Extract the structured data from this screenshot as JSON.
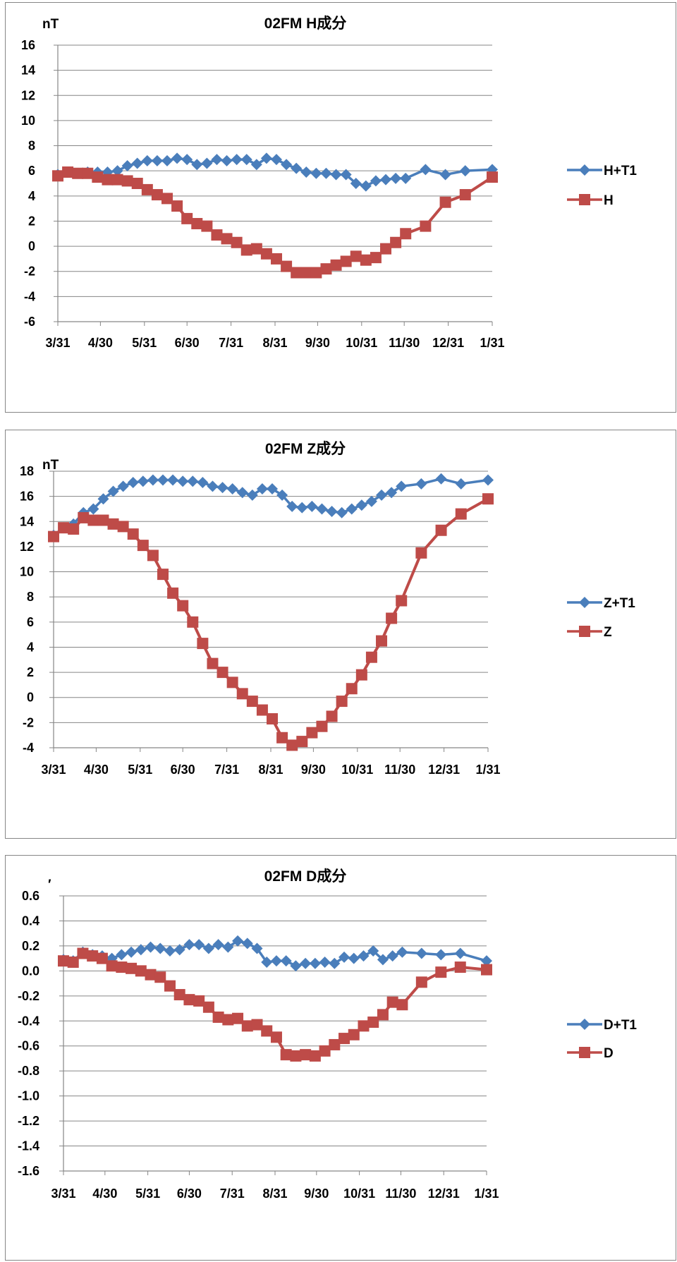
{
  "chart_data": [
    {
      "type": "line",
      "title": "02FM H成分",
      "ylabel": "nT",
      "xlabel": "",
      "ylim": [
        -6,
        16
      ],
      "yticks": [
        "16",
        "14",
        "12",
        "10",
        "8",
        "6",
        "4",
        "2",
        "0",
        "-2",
        "-4",
        "-6"
      ],
      "xticks": [
        "3/31",
        "4/30",
        "5/31",
        "6/30",
        "7/31",
        "8/31",
        "9/30",
        "10/31",
        "11/30",
        "12/31",
        "1/31"
      ],
      "xlim": [
        "3/31",
        "1/31"
      ],
      "grid": "horizontal",
      "legend_position": "right",
      "series": [
        {
          "name": "H+T1",
          "color": "#4a7ebb",
          "marker": "diamond",
          "x": [
            "3/31",
            "4/7",
            "4/14",
            "4/21",
            "4/28",
            "5/5",
            "5/12",
            "5/19",
            "5/26",
            "6/2",
            "6/9",
            "6/16",
            "6/23",
            "6/30",
            "7/7",
            "7/14",
            "7/21",
            "7/28",
            "8/4",
            "8/11",
            "8/18",
            "8/25",
            "9/1",
            "9/8",
            "9/15",
            "9/22",
            "9/29",
            "10/6",
            "10/13",
            "10/20",
            "10/27",
            "11/3",
            "11/10",
            "11/17",
            "11/24",
            "12/1",
            "12/15",
            "12/29",
            "1/12",
            "1/31"
          ],
          "values": [
            5.7,
            5.9,
            5.8,
            5.9,
            5.9,
            5.9,
            6.0,
            6.4,
            6.6,
            6.8,
            6.8,
            6.8,
            7.0,
            6.9,
            6.5,
            6.6,
            6.9,
            6.8,
            6.9,
            6.9,
            6.5,
            7.0,
            6.9,
            6.5,
            6.2,
            5.9,
            5.8,
            5.8,
            5.7,
            5.7,
            5.0,
            4.8,
            5.2,
            5.3,
            5.4,
            5.4,
            6.1,
            5.7,
            6.0,
            6.1
          ]
        },
        {
          "name": "H",
          "color": "#be4b48",
          "marker": "square",
          "x": [
            "3/31",
            "4/7",
            "4/14",
            "4/21",
            "4/28",
            "5/5",
            "5/12",
            "5/19",
            "5/26",
            "6/2",
            "6/9",
            "6/16",
            "6/23",
            "6/30",
            "7/7",
            "7/14",
            "7/21",
            "7/28",
            "8/4",
            "8/11",
            "8/18",
            "8/25",
            "9/1",
            "9/8",
            "9/15",
            "9/22",
            "9/29",
            "10/6",
            "10/13",
            "10/20",
            "10/27",
            "11/3",
            "11/10",
            "11/17",
            "11/24",
            "12/1",
            "12/15",
            "12/29",
            "1/12",
            "1/31"
          ],
          "values": [
            5.6,
            5.9,
            5.8,
            5.8,
            5.5,
            5.3,
            5.3,
            5.2,
            5.0,
            4.5,
            4.1,
            3.8,
            3.2,
            2.2,
            1.8,
            1.6,
            0.9,
            0.6,
            0.3,
            -0.3,
            -0.2,
            -0.6,
            -1.0,
            -1.6,
            -2.1,
            -2.1,
            -2.1,
            -1.8,
            -1.5,
            -1.2,
            -0.8,
            -1.1,
            -0.9,
            -0.2,
            0.3,
            1.0,
            1.6,
            3.5,
            4.1,
            5.5
          ]
        }
      ]
    },
    {
      "type": "line",
      "title": "02FM Z成分",
      "ylabel": "nT",
      "xlabel": "",
      "ylim": [
        -4,
        18
      ],
      "yticks": [
        "18",
        "16",
        "14",
        "12",
        "10",
        "8",
        "6",
        "4",
        "2",
        "0",
        "-2",
        "-4"
      ],
      "xticks": [
        "3/31",
        "4/30",
        "5/31",
        "6/30",
        "7/31",
        "8/31",
        "9/30",
        "10/31",
        "11/30",
        "12/31",
        "1/31"
      ],
      "xlim": [
        "3/31",
        "1/31"
      ],
      "grid": "horizontal",
      "legend_position": "right",
      "series": [
        {
          "name": "Z+T1",
          "color": "#4a7ebb",
          "marker": "diamond",
          "x": [
            "3/31",
            "4/7",
            "4/14",
            "4/21",
            "4/28",
            "5/5",
            "5/12",
            "5/19",
            "5/26",
            "6/2",
            "6/9",
            "6/16",
            "6/23",
            "6/30",
            "7/7",
            "7/14",
            "7/21",
            "7/28",
            "8/4",
            "8/11",
            "8/18",
            "8/25",
            "9/1",
            "9/8",
            "9/15",
            "9/22",
            "9/29",
            "10/6",
            "10/13",
            "10/20",
            "10/27",
            "11/3",
            "11/10",
            "11/17",
            "11/24",
            "12/1",
            "12/15",
            "12/29",
            "1/12",
            "1/31"
          ],
          "values": [
            12.9,
            13.5,
            13.8,
            14.7,
            15.0,
            15.8,
            16.4,
            16.8,
            17.1,
            17.2,
            17.3,
            17.3,
            17.3,
            17.2,
            17.2,
            17.1,
            16.8,
            16.7,
            16.6,
            16.3,
            16.1,
            16.6,
            16.6,
            16.1,
            15.2,
            15.1,
            15.2,
            15.0,
            14.8,
            14.7,
            15.0,
            15.3,
            15.6,
            16.1,
            16.3,
            16.8,
            17.0,
            17.4,
            17.0,
            17.3
          ]
        },
        {
          "name": "Z",
          "color": "#be4b48",
          "marker": "square",
          "x": [
            "3/31",
            "4/7",
            "4/14",
            "4/21",
            "4/28",
            "5/5",
            "5/12",
            "5/19",
            "5/26",
            "6/2",
            "6/9",
            "6/16",
            "6/23",
            "6/30",
            "7/7",
            "7/14",
            "7/21",
            "7/28",
            "8/4",
            "8/11",
            "8/18",
            "8/25",
            "9/1",
            "9/8",
            "9/15",
            "9/22",
            "9/29",
            "10/6",
            "10/13",
            "10/20",
            "10/27",
            "11/3",
            "11/10",
            "11/17",
            "11/24",
            "12/1",
            "12/15",
            "12/29",
            "1/12",
            "1/31"
          ],
          "values": [
            12.8,
            13.5,
            13.4,
            14.3,
            14.1,
            14.1,
            13.8,
            13.6,
            13.0,
            12.1,
            11.3,
            9.8,
            8.3,
            7.3,
            6.0,
            4.3,
            2.7,
            2.0,
            1.2,
            0.3,
            -0.3,
            -1.0,
            -1.7,
            -3.2,
            -3.8,
            -3.5,
            -2.8,
            -2.3,
            -1.5,
            -0.3,
            0.7,
            1.8,
            3.2,
            4.5,
            6.3,
            7.7,
            11.5,
            13.3,
            14.6,
            15.8
          ]
        }
      ]
    },
    {
      "type": "line",
      "title": "02FM D成分",
      "ylabel": "′",
      "xlabel": "",
      "ylim": [
        -1.6,
        0.6
      ],
      "yticks": [
        "0.6",
        "0.4",
        "0.2",
        "0.0",
        "-0.2",
        "-0.4",
        "-0.6",
        "-0.8",
        "-1.0",
        "-1.2",
        "-1.4",
        "-1.6"
      ],
      "xticks": [
        "3/31",
        "4/30",
        "5/31",
        "6/30",
        "7/31",
        "8/31",
        "9/30",
        "10/31",
        "11/30",
        "12/31",
        "1/31"
      ],
      "xlim": [
        "3/31",
        "1/31"
      ],
      "grid": "horizontal",
      "legend_position": "right",
      "series": [
        {
          "name": "D+T1",
          "color": "#4a7ebb",
          "marker": "diamond",
          "x": [
            "3/31",
            "4/7",
            "4/14",
            "4/21",
            "4/28",
            "5/5",
            "5/12",
            "5/19",
            "5/26",
            "6/2",
            "6/9",
            "6/16",
            "6/23",
            "6/30",
            "7/7",
            "7/14",
            "7/21",
            "7/28",
            "8/4",
            "8/11",
            "8/18",
            "8/25",
            "9/1",
            "9/8",
            "9/15",
            "9/22",
            "9/29",
            "10/6",
            "10/13",
            "10/20",
            "10/27",
            "11/3",
            "11/10",
            "11/17",
            "11/24",
            "12/1",
            "12/15",
            "12/29",
            "1/12",
            "1/31"
          ],
          "values": [
            0.09,
            0.08,
            0.15,
            0.13,
            0.12,
            0.1,
            0.13,
            0.15,
            0.17,
            0.19,
            0.18,
            0.16,
            0.17,
            0.21,
            0.21,
            0.18,
            0.21,
            0.19,
            0.24,
            0.22,
            0.18,
            0.07,
            0.08,
            0.08,
            0.04,
            0.06,
            0.06,
            0.07,
            0.06,
            0.11,
            0.1,
            0.12,
            0.16,
            0.09,
            0.12,
            0.15,
            0.14,
            0.13,
            0.14,
            0.08
          ]
        },
        {
          "name": "D",
          "color": "#be4b48",
          "marker": "square",
          "x": [
            "3/31",
            "4/7",
            "4/14",
            "4/21",
            "4/28",
            "5/5",
            "5/12",
            "5/19",
            "5/26",
            "6/2",
            "6/9",
            "6/16",
            "6/23",
            "6/30",
            "7/7",
            "7/14",
            "7/21",
            "7/28",
            "8/4",
            "8/11",
            "8/18",
            "8/25",
            "9/1",
            "9/8",
            "9/15",
            "9/22",
            "9/29",
            "10/6",
            "10/13",
            "10/20",
            "10/27",
            "11/3",
            "11/10",
            "11/17",
            "11/24",
            "12/1",
            "12/15",
            "12/29",
            "1/12",
            "1/31"
          ],
          "values": [
            0.08,
            0.07,
            0.14,
            0.12,
            0.1,
            0.04,
            0.03,
            0.02,
            0.0,
            -0.03,
            -0.05,
            -0.12,
            -0.19,
            -0.23,
            -0.24,
            -0.29,
            -0.37,
            -0.39,
            -0.38,
            -0.44,
            -0.43,
            -0.48,
            -0.53,
            -0.67,
            -0.68,
            -0.67,
            -0.68,
            -0.64,
            -0.59,
            -0.54,
            -0.51,
            -0.44,
            -0.41,
            -0.35,
            -0.25,
            -0.27,
            -0.09,
            -0.01,
            0.03,
            0.01
          ]
        }
      ]
    }
  ]
}
